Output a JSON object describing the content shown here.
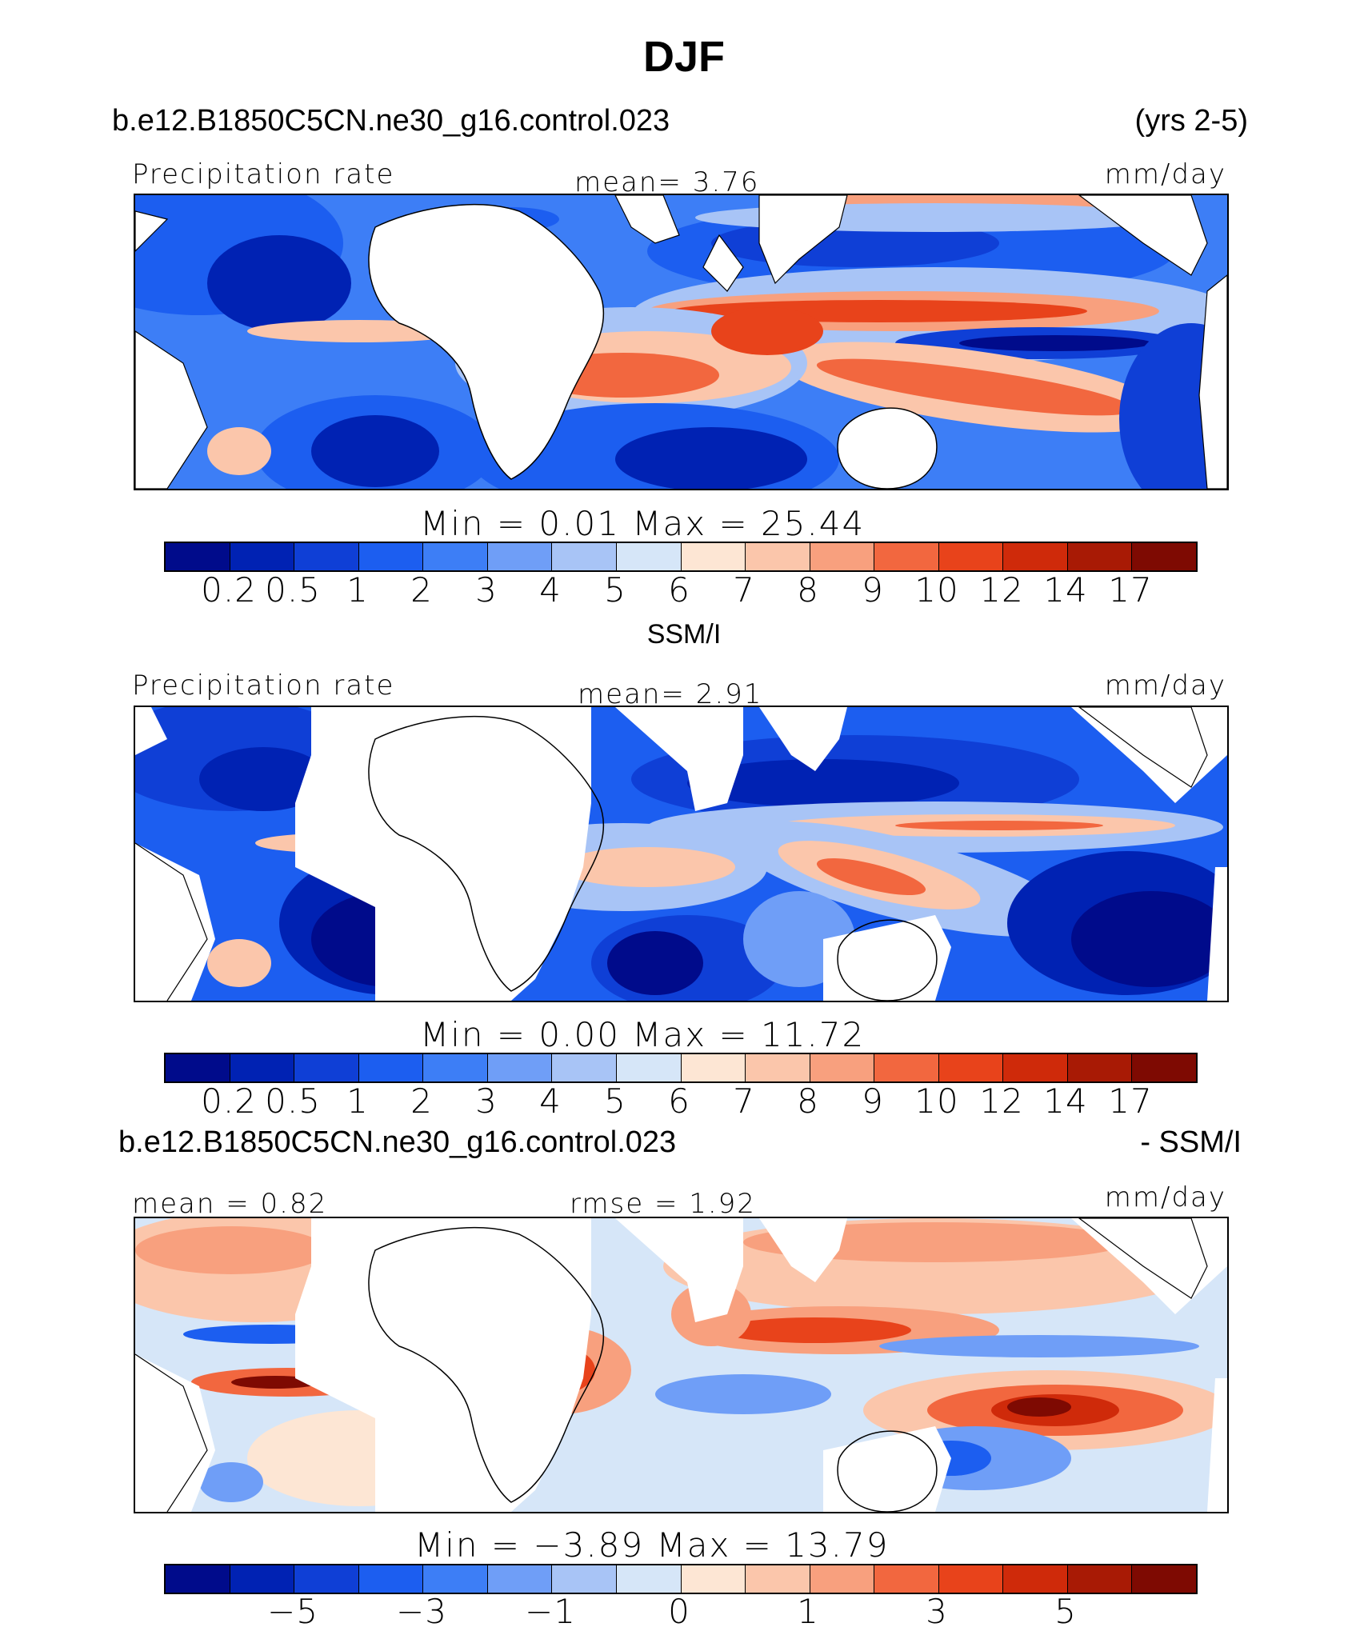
{
  "title": "DJF",
  "panels": [
    {
      "id": "model",
      "header_left": "b.e12.B1850C5CN.ne30_g16.control.023",
      "header_right": "(yrs 2-5)",
      "top_left": "Precipitation rate",
      "top_center": "mean=    3.76",
      "top_right": "mm/day",
      "min_max": "Min  =    0.01  Max  =   25.44",
      "colorbar_ticks": [
        "0.2",
        "0.5",
        "1",
        "2",
        "3",
        "4",
        "5",
        "6",
        "7",
        "8",
        "9",
        "10",
        "12",
        "14",
        "17"
      ]
    },
    {
      "id": "obs",
      "header_center": "SSM/I",
      "top_left": "Precipitation rate",
      "top_center": "mean=    2.91",
      "top_right": "mm/day",
      "min_max": "Min  =    0.00  Max  =   11.72",
      "colorbar_ticks": [
        "0.2",
        "0.5",
        "1",
        "2",
        "3",
        "4",
        "5",
        "6",
        "7",
        "8",
        "9",
        "10",
        "12",
        "14",
        "17"
      ]
    },
    {
      "id": "diff",
      "header_left": "b.e12.B1850C5CN.ne30_g16.control.023",
      "header_right": "- SSM/I",
      "top_left": "mean =    0.82",
      "top_center": "rmse  =    1.92",
      "top_right": "mm/day",
      "min_max": "Min  =   −3.89  Max  =   13.79",
      "colorbar_ticks": [
        "−5",
        "−3",
        "−1",
        "0",
        "1",
        "3",
        "5"
      ]
    }
  ],
  "colorbar_colors": [
    "#000b8b",
    "#0022b3",
    "#0f3fd6",
    "#1c5ef0",
    "#3d7ef6",
    "#6f9ef7",
    "#a8c4f6",
    "#d6e6f8",
    "#fde6d4",
    "#fbc6ab",
    "#f8a07e",
    "#f2673f",
    "#e8431b",
    "#cf2a0a",
    "#a81a05",
    "#7e0a02"
  ]
}
